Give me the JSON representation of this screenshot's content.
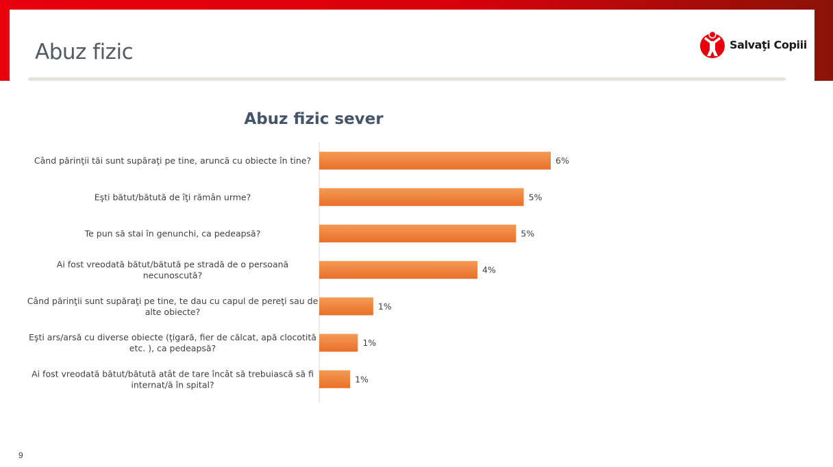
{
  "slide": {
    "title": "Abuz fizic",
    "page_number": "9",
    "brand": "Salvaţi Copiii"
  },
  "colors": {
    "brand_red": "#e8000d",
    "bar_fill": "#ed7d31",
    "title_color": "#44546a"
  },
  "chart_data": {
    "type": "bar",
    "orientation": "horizontal",
    "title": "Abuz fizic sever",
    "categories": [
      "Când părinţii tăi sunt supăraţi pe tine, aruncă cu obiecte în tine?",
      "Eşti bătut/bătută de îţi rămân urme?",
      "Te pun să stai în genunchi, ca pedeapsă?",
      "Ai fost vreodată bătut/bătută pe stradă de o persoană necunoscută?",
      "Când părinţii sunt supăraţi pe tine, te dau cu capul de pereţi sau de alte obiecte?",
      "Eşti ars/arsă cu diverse obiecte (ţigară, fier de călcat, apă clocotită etc. ), ca pedeapsă?",
      "Ai fost vreodată bătut/bătută atât de tare încât să trebuiască să fi internat/ă în spital?"
    ],
    "category_lines": [
      [
        "Când părinţii tăi sunt supăraţi pe tine, aruncă cu obiecte în tine?"
      ],
      [
        "Eşti bătut/bătută de îţi rămân urme?"
      ],
      [
        "Te pun să stai în genunchi, ca pedeapsă?"
      ],
      [
        "Ai fost vreodată bătut/bătută pe stradă de o persoană",
        "necunoscută?"
      ],
      [
        "Când părinţii sunt supăraţi pe tine, te dau cu capul de pereţi sau de",
        "alte obiecte?"
      ],
      [
        "Eşti ars/arsă cu diverse obiecte (ţigară, fier de călcat, apă clocotită",
        "etc. ), ca pedeapsă?"
      ],
      [
        "Ai fost vreodată bătut/bătută atât de tare încât să trebuiască să fi",
        "internat/ă în spital?"
      ]
    ],
    "values": [
      6.0,
      5.3,
      5.1,
      4.1,
      1.4,
      1.0,
      0.8
    ],
    "value_labels": [
      "6%",
      "5%",
      "5%",
      "4%",
      "1%",
      "1%",
      "1%"
    ],
    "xlim": [
      0,
      6.0
    ],
    "grid": false,
    "legend": "none"
  }
}
